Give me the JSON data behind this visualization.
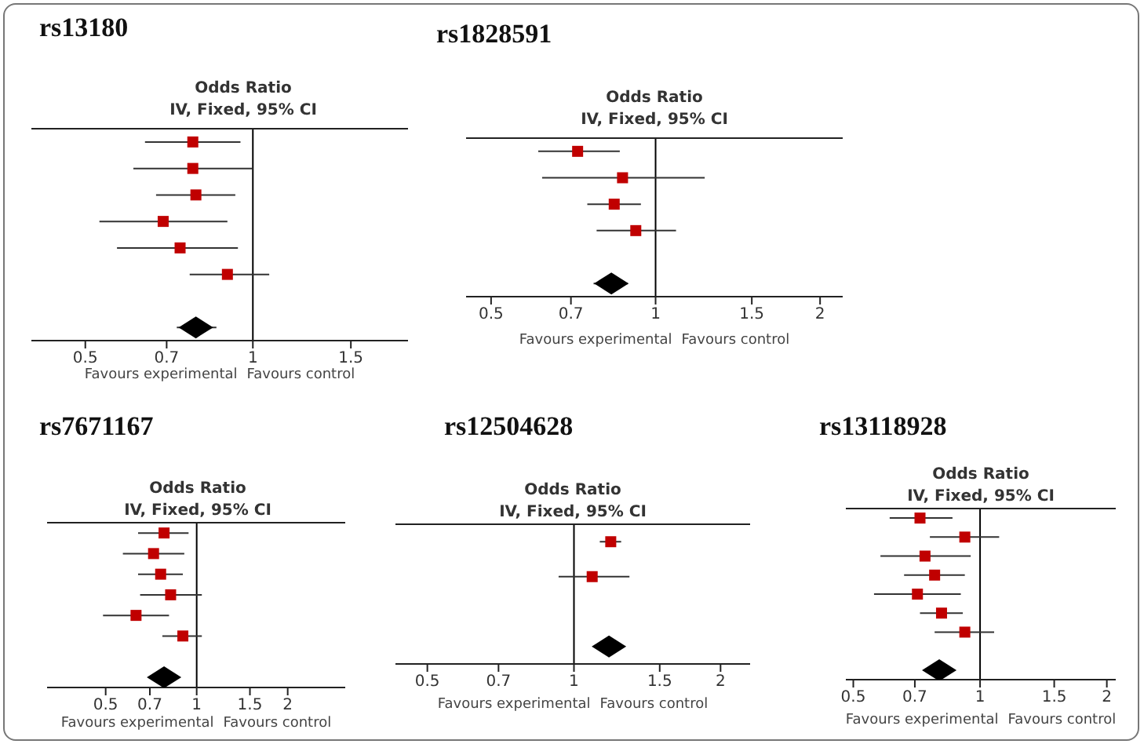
{
  "chart_data": [
    {
      "type": "scatter",
      "title": "rs13180",
      "subtitle": "Odds Ratio",
      "annotations": [
        "IV, Fixed, 95% CI",
        "Favours experimental",
        "Favours control"
      ],
      "orientation": "horizontal",
      "log": "x",
      "xlim": [
        0.4,
        1.9
      ],
      "xticks": [
        0.5,
        0.7,
        1,
        1.5
      ],
      "tick_labels": "x",
      "grid": false,
      "categories": [
        null,
        null,
        null,
        null,
        null,
        null,
        null,
        null
      ],
      "series": [
        {
          "color": "#c00000",
          "marker": "square",
          "values": [
            0.78,
            0.78,
            0.79,
            0.69,
            0.74,
            0.9,
            null,
            null
          ],
          "errors": [
            [
              0.64,
              0.95
            ],
            [
              0.61,
              1.0
            ],
            [
              0.67,
              0.93
            ],
            [
              0.53,
              0.9
            ],
            [
              0.57,
              0.94
            ],
            [
              0.77,
              1.07
            ],
            null,
            null
          ]
        },
        {
          "color": "#000000",
          "marker": "diamond",
          "values": [
            null,
            null,
            null,
            null,
            null,
            null,
            null,
            0.79
          ],
          "errors": [
            null,
            null,
            null,
            null,
            null,
            null,
            null,
            [
              0.73,
              0.86
            ]
          ]
        }
      ],
      "ref_lines": [
        {
          "axis": "x",
          "value": 1,
          "color": "#000000"
        }
      ]
    },
    {
      "type": "scatter",
      "title": "rs1828591",
      "subtitle": "Odds Ratio",
      "annotations": [
        "IV, Fixed, 95% CI",
        "Favours experimental",
        "Favours control"
      ],
      "orientation": "horizontal",
      "log": "x",
      "xlim": [
        0.45,
        2.2
      ],
      "xticks": [
        0.5,
        0.7,
        1,
        1.5,
        2
      ],
      "tick_labels": "x",
      "grid": false,
      "categories": [
        null,
        null,
        null,
        null,
        null,
        null
      ],
      "series": [
        {
          "color": "#c00000",
          "marker": "square",
          "values": [
            0.72,
            0.87,
            0.84,
            0.92,
            null,
            null
          ],
          "errors": [
            [
              0.61,
              0.86
            ],
            [
              0.62,
              1.23
            ],
            [
              0.75,
              0.94
            ],
            [
              0.78,
              1.09
            ],
            null,
            null
          ]
        },
        {
          "color": "#000000",
          "marker": "diamond",
          "values": [
            null,
            null,
            null,
            null,
            null,
            0.83
          ],
          "errors": [
            null,
            null,
            null,
            null,
            null,
            [
              0.77,
              0.89
            ]
          ]
        }
      ],
      "ref_lines": [
        {
          "axis": "x",
          "value": 1,
          "color": "#000000"
        }
      ]
    },
    {
      "type": "scatter",
      "title": "rs7671167",
      "subtitle": "Odds Ratio",
      "annotations": [
        "IV, Fixed, 95% CI",
        "Favours experimental",
        "Favours control"
      ],
      "orientation": "horizontal",
      "log": "x",
      "xlim": [
        0.32,
        3.1
      ],
      "xticks": [
        0.5,
        0.7,
        1,
        1.5,
        2
      ],
      "tick_labels": "x",
      "grid": false,
      "categories": [
        null,
        null,
        null,
        null,
        null,
        null,
        null,
        null
      ],
      "series": [
        {
          "color": "#c00000",
          "marker": "square",
          "values": [
            0.78,
            0.72,
            0.76,
            0.82,
            0.63,
            0.9,
            null,
            null
          ],
          "errors": [
            [
              0.64,
              0.94
            ],
            [
              0.57,
              0.91
            ],
            [
              0.64,
              0.9
            ],
            [
              0.65,
              1.04
            ],
            [
              0.49,
              0.81
            ],
            [
              0.77,
              1.04
            ],
            null,
            null
          ]
        },
        {
          "color": "#000000",
          "marker": "diamond",
          "values": [
            null,
            null,
            null,
            null,
            null,
            null,
            null,
            0.78
          ],
          "errors": [
            null,
            null,
            null,
            null,
            null,
            null,
            null,
            [
              0.73,
              0.84
            ]
          ]
        }
      ],
      "ref_lines": [
        {
          "axis": "x",
          "value": 1,
          "color": "#000000"
        }
      ]
    },
    {
      "type": "scatter",
      "title": "rs12504628",
      "subtitle": "Odds Ratio",
      "annotations": [
        "IV, Fixed, 95% CI",
        "Favours experimental",
        "Favours control"
      ],
      "orientation": "horizontal",
      "log": "x",
      "xlim": [
        0.43,
        2.3
      ],
      "xticks": [
        0.5,
        0.7,
        1,
        1.5,
        2
      ],
      "tick_labels": "x",
      "grid": false,
      "categories": [
        null,
        null,
        null,
        null
      ],
      "series": [
        {
          "color": "#c00000",
          "marker": "square",
          "values": [
            1.19,
            1.09,
            null,
            null
          ],
          "errors": [
            [
              1.13,
              1.25
            ],
            [
              0.93,
              1.3
            ],
            null,
            null
          ]
        },
        {
          "color": "#000000",
          "marker": "diamond",
          "values": [
            null,
            null,
            null,
            1.18
          ],
          "errors": [
            null,
            null,
            null,
            [
              1.12,
              1.24
            ]
          ]
        }
      ],
      "ref_lines": [
        {
          "axis": "x",
          "value": 1,
          "color": "#000000"
        }
      ]
    },
    {
      "type": "scatter",
      "title": "rs13118928",
      "subtitle": "Odds Ratio",
      "annotations": [
        "IV, Fixed, 95% CI",
        "Favours experimental",
        "Favours control"
      ],
      "orientation": "horizontal",
      "log": "x",
      "xlim": [
        0.48,
        2.1
      ],
      "xticks": [
        0.5,
        0.7,
        1,
        1.5,
        2
      ],
      "tick_labels": "x",
      "grid": false,
      "categories": [
        null,
        null,
        null,
        null,
        null,
        null,
        null,
        null,
        null
      ],
      "series": [
        {
          "color": "#c00000",
          "marker": "square",
          "values": [
            0.72,
            0.92,
            0.74,
            0.78,
            0.71,
            0.81,
            0.92,
            null,
            null
          ],
          "errors": [
            [
              0.61,
              0.86
            ],
            [
              0.76,
              1.11
            ],
            [
              0.58,
              0.95
            ],
            [
              0.66,
              0.92
            ],
            [
              0.56,
              0.9
            ],
            [
              0.72,
              0.91
            ],
            [
              0.78,
              1.08
            ],
            null,
            null
          ]
        },
        {
          "color": "#000000",
          "marker": "diamond",
          "values": [
            null,
            null,
            null,
            null,
            null,
            null,
            null,
            null,
            0.8
          ],
          "errors": [
            null,
            null,
            null,
            null,
            null,
            null,
            null,
            null,
            [
              0.76,
              0.85
            ]
          ]
        }
      ],
      "ref_lines": [
        {
          "axis": "x",
          "value": 1,
          "color": "#000000"
        }
      ]
    }
  ]
}
